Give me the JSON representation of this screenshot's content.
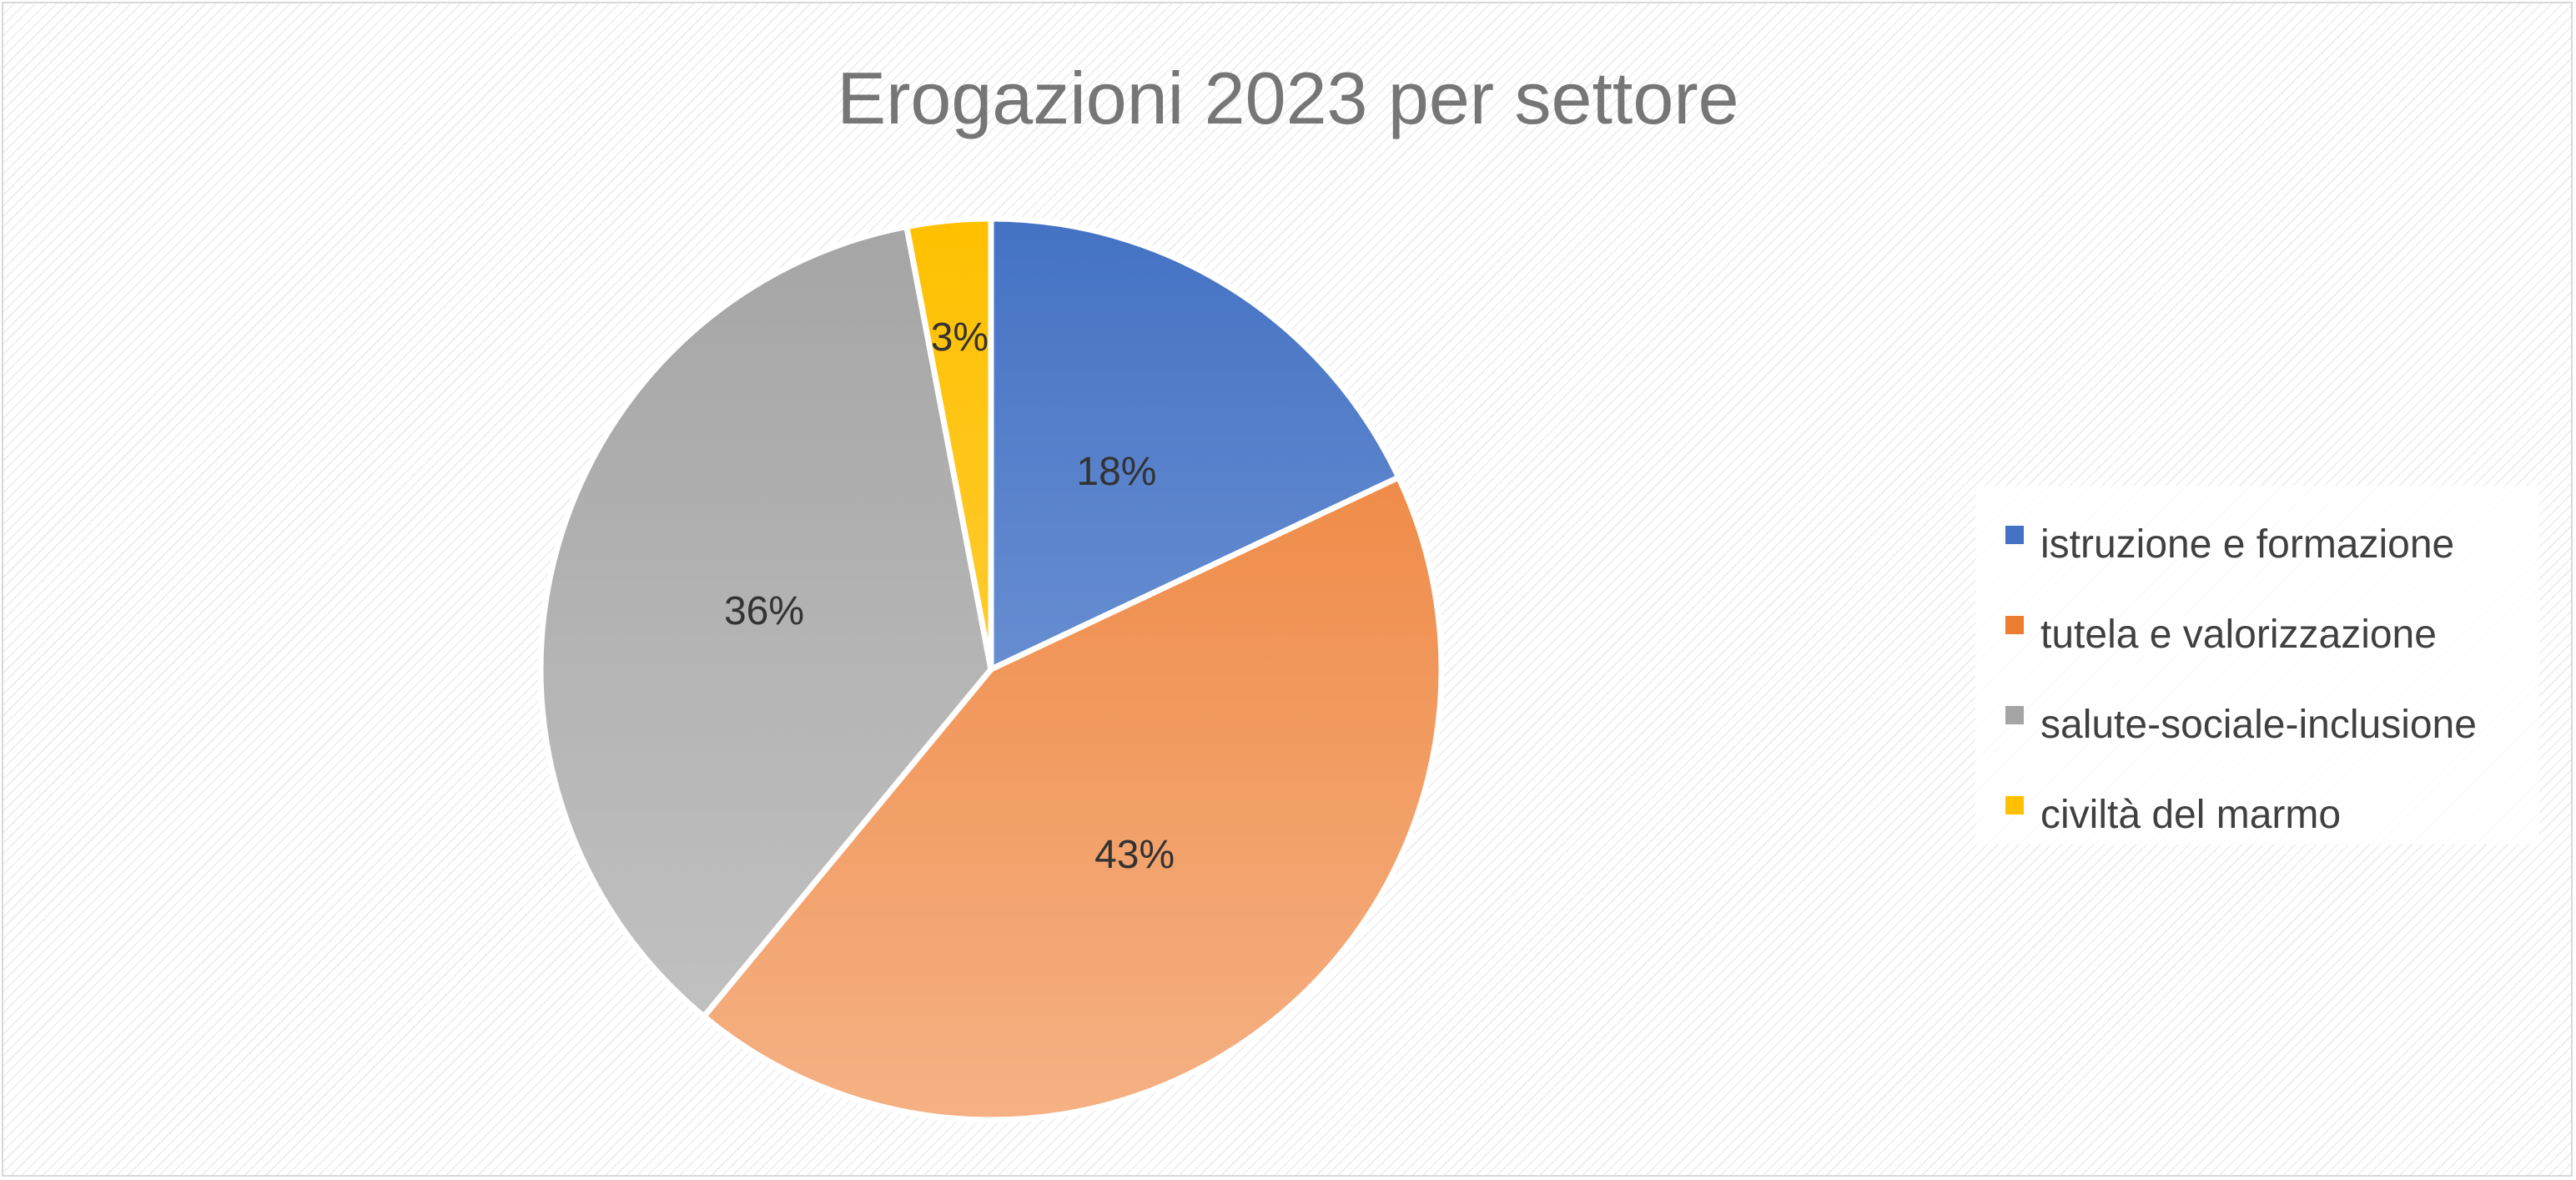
{
  "chart_data": {
    "type": "pie",
    "title": "Erogazioni 2023 per settore",
    "slices": [
      {
        "label": "istruzione e formazione",
        "value": 18,
        "display": "18%",
        "color": "#4472c4",
        "color_light": "#8aa9de"
      },
      {
        "label": "tutela e valorizzazione",
        "value": 43,
        "display": "43%",
        "color": "#ed7d31",
        "color_light": "#f5b184"
      },
      {
        "label": "salute-sociale-inclusione",
        "value": 36,
        "display": "36%",
        "color": "#a5a5a5",
        "color_light": "#c4c4c4"
      },
      {
        "label": "civiltà del marmo",
        "value": 3,
        "display": "3%",
        "color": "#ffc000",
        "color_light": "#ffd65c"
      }
    ],
    "legend_position": "right",
    "start_angle": "12 o'clock",
    "direction": "clockwise"
  }
}
